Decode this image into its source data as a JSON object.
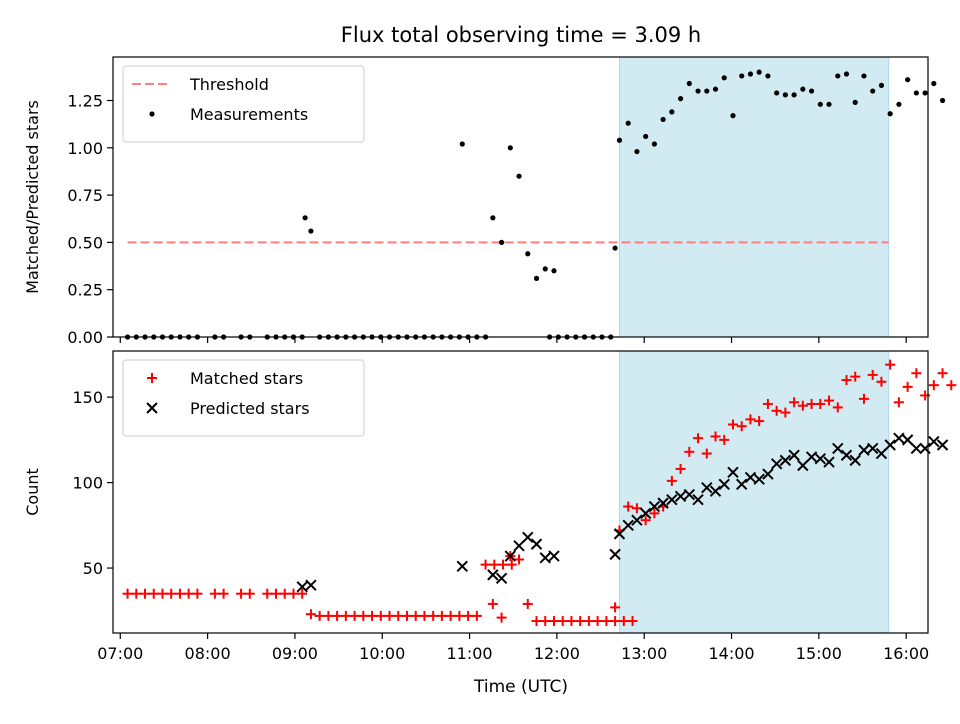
{
  "figure": {
    "title": "Flux total observing time = 3.09 h",
    "xlabel": "Time (UTC)",
    "x_ticks": [
      "07:00",
      "08:00",
      "09:00",
      "10:00",
      "11:00",
      "12:00",
      "13:00",
      "14:00",
      "15:00",
      "16:00"
    ],
    "colors": {
      "threshold": "#ff7f7f",
      "measurements": "#000000",
      "matched": "#ff0000",
      "predicted": "#000000",
      "shade": "#add8e6"
    }
  },
  "chart_data": [
    {
      "type": "scatter",
      "ylabel": "Matched/Predicted stars",
      "xlim": [
        "06:55",
        "16:15"
      ],
      "ylim": [
        0,
        1.48
      ],
      "y_ticks": [
        "0.00",
        "0.25",
        "0.50",
        "0.75",
        "1.00",
        "1.25"
      ],
      "shaded_region": [
        "12:43",
        "15:48"
      ],
      "legend_position": "upper left",
      "threshold": {
        "name": "Threshold",
        "y": 0.5,
        "x_range": [
          "07:05",
          "15:48"
        ]
      },
      "series": [
        {
          "name": "Measurements",
          "points": [
            [
              "07:05",
              0
            ],
            [
              "07:11",
              0
            ],
            [
              "07:17",
              0
            ],
            [
              "07:23",
              0
            ],
            [
              "07:29",
              0
            ],
            [
              "07:35",
              0
            ],
            [
              "07:41",
              0
            ],
            [
              "07:47",
              0
            ],
            [
              "07:53",
              0
            ],
            [
              "08:05",
              0
            ],
            [
              "08:11",
              0
            ],
            [
              "08:23",
              0
            ],
            [
              "08:29",
              0
            ],
            [
              "08:41",
              0
            ],
            [
              "08:47",
              0
            ],
            [
              "08:53",
              0
            ],
            [
              "08:59",
              0
            ],
            [
              "09:05",
              0
            ],
            [
              "09:07",
              0.63
            ],
            [
              "09:11",
              0.56
            ],
            [
              "09:17",
              0
            ],
            [
              "09:23",
              0
            ],
            [
              "09:29",
              0
            ],
            [
              "09:35",
              0
            ],
            [
              "09:41",
              0
            ],
            [
              "09:47",
              0
            ],
            [
              "09:53",
              0
            ],
            [
              "09:59",
              0
            ],
            [
              "10:05",
              0
            ],
            [
              "10:11",
              0
            ],
            [
              "10:17",
              0
            ],
            [
              "10:23",
              0
            ],
            [
              "10:29",
              0
            ],
            [
              "10:35",
              0
            ],
            [
              "10:41",
              0
            ],
            [
              "10:47",
              0
            ],
            [
              "10:53",
              0
            ],
            [
              "10:59",
              0
            ],
            [
              "11:05",
              0
            ],
            [
              "11:11",
              0
            ],
            [
              "10:55",
              1.02
            ],
            [
              "11:16",
              0.63
            ],
            [
              "11:22",
              0.5
            ],
            [
              "11:28",
              1.0
            ],
            [
              "11:34",
              0.85
            ],
            [
              "11:40",
              0.44
            ],
            [
              "11:46",
              0.31
            ],
            [
              "11:52",
              0.36
            ],
            [
              "11:58",
              0.35
            ],
            [
              "11:55",
              0
            ],
            [
              "12:01",
              0
            ],
            [
              "12:07",
              0
            ],
            [
              "12:13",
              0
            ],
            [
              "12:19",
              0
            ],
            [
              "12:25",
              0
            ],
            [
              "12:31",
              0
            ],
            [
              "12:37",
              0
            ],
            [
              "12:40",
              0.47
            ],
            [
              "12:43",
              1.04
            ],
            [
              "12:49",
              1.13
            ],
            [
              "12:55",
              0.98
            ],
            [
              "13:01",
              1.06
            ],
            [
              "13:07",
              1.02
            ],
            [
              "13:13",
              1.15
            ],
            [
              "13:19",
              1.19
            ],
            [
              "13:25",
              1.26
            ],
            [
              "13:31",
              1.34
            ],
            [
              "13:37",
              1.3
            ],
            [
              "13:43",
              1.3
            ],
            [
              "13:49",
              1.31
            ],
            [
              "13:55",
              1.37
            ],
            [
              "14:01",
              1.17
            ],
            [
              "14:07",
              1.38
            ],
            [
              "14:13",
              1.39
            ],
            [
              "14:19",
              1.4
            ],
            [
              "14:25",
              1.38
            ],
            [
              "14:31",
              1.29
            ],
            [
              "14:37",
              1.28
            ],
            [
              "14:43",
              1.28
            ],
            [
              "14:49",
              1.31
            ],
            [
              "14:55",
              1.3
            ],
            [
              "15:01",
              1.23
            ],
            [
              "15:07",
              1.23
            ],
            [
              "15:13",
              1.38
            ],
            [
              "15:19",
              1.39
            ],
            [
              "15:25",
              1.24
            ],
            [
              "15:31",
              1.38
            ],
            [
              "15:37",
              1.3
            ],
            [
              "15:43",
              1.33
            ],
            [
              "15:49",
              1.18
            ],
            [
              "15:55",
              1.23
            ],
            [
              "16:01",
              1.36
            ],
            [
              "16:07",
              1.29
            ],
            [
              "16:13",
              1.29
            ],
            [
              "16:19",
              1.34
            ],
            [
              "16:25",
              1.25
            ]
          ]
        }
      ]
    },
    {
      "type": "scatter",
      "ylabel": "Count",
      "xlim": [
        "06:55",
        "16:15"
      ],
      "ylim": [
        12,
        177
      ],
      "y_ticks": [
        "50",
        "100",
        "150"
      ],
      "shaded_region": [
        "12:43",
        "15:48"
      ],
      "legend_position": "upper left",
      "series": [
        {
          "name": "Matched stars",
          "marker": "+",
          "points": [
            [
              "07:05",
              35
            ],
            [
              "07:11",
              35
            ],
            [
              "07:17",
              35
            ],
            [
              "07:23",
              35
            ],
            [
              "07:29",
              35
            ],
            [
              "07:35",
              35
            ],
            [
              "07:41",
              35
            ],
            [
              "07:47",
              35
            ],
            [
              "07:53",
              35
            ],
            [
              "08:05",
              35
            ],
            [
              "08:11",
              35
            ],
            [
              "08:23",
              35
            ],
            [
              "08:29",
              35
            ],
            [
              "08:41",
              35
            ],
            [
              "08:47",
              35
            ],
            [
              "08:53",
              35
            ],
            [
              "08:59",
              35
            ],
            [
              "09:05",
              35
            ],
            [
              "09:11",
              23
            ],
            [
              "09:17",
              22
            ],
            [
              "09:23",
              22
            ],
            [
              "09:29",
              22
            ],
            [
              "09:35",
              22
            ],
            [
              "09:41",
              22
            ],
            [
              "09:47",
              22
            ],
            [
              "09:53",
              22
            ],
            [
              "09:59",
              22
            ],
            [
              "10:05",
              22
            ],
            [
              "10:11",
              22
            ],
            [
              "10:17",
              22
            ],
            [
              "10:23",
              22
            ],
            [
              "10:29",
              22
            ],
            [
              "10:35",
              22
            ],
            [
              "10:41",
              22
            ],
            [
              "10:47",
              22
            ],
            [
              "10:53",
              22
            ],
            [
              "10:59",
              22
            ],
            [
              "11:05",
              22
            ],
            [
              "11:11",
              52
            ],
            [
              "11:17",
              52
            ],
            [
              "11:23",
              52
            ],
            [
              "11:29",
              52
            ],
            [
              "11:16",
              29
            ],
            [
              "11:22",
              21
            ],
            [
              "11:28",
              57
            ],
            [
              "11:34",
              55
            ],
            [
              "11:40",
              29
            ],
            [
              "11:46",
              19
            ],
            [
              "11:52",
              19
            ],
            [
              "11:58",
              19
            ],
            [
              "12:04",
              19
            ],
            [
              "12:10",
              19
            ],
            [
              "12:16",
              19
            ],
            [
              "12:22",
              19
            ],
            [
              "12:28",
              19
            ],
            [
              "12:34",
              19
            ],
            [
              "12:40",
              19
            ],
            [
              "12:46",
              19
            ],
            [
              "12:52",
              19
            ],
            [
              "12:40",
              27
            ],
            [
              "12:43",
              72
            ],
            [
              "12:49",
              86
            ],
            [
              "12:55",
              85
            ],
            [
              "13:01",
              78
            ],
            [
              "13:07",
              82
            ],
            [
              "13:13",
              86
            ],
            [
              "13:19",
              101
            ],
            [
              "13:25",
              108
            ],
            [
              "13:31",
              118
            ],
            [
              "13:37",
              126
            ],
            [
              "13:43",
              117
            ],
            [
              "13:49",
              127
            ],
            [
              "13:55",
              125
            ],
            [
              "14:01",
              134
            ],
            [
              "14:07",
              133
            ],
            [
              "14:13",
              137
            ],
            [
              "14:19",
              136
            ],
            [
              "14:25",
              146
            ],
            [
              "14:31",
              142
            ],
            [
              "14:37",
              141
            ],
            [
              "14:43",
              147
            ],
            [
              "14:49",
              145
            ],
            [
              "14:55",
              146
            ],
            [
              "15:01",
              146
            ],
            [
              "15:07",
              148
            ],
            [
              "15:13",
              144
            ],
            [
              "15:19",
              160
            ],
            [
              "15:25",
              162
            ],
            [
              "15:31",
              149
            ],
            [
              "15:37",
              163
            ],
            [
              "15:43",
              159
            ],
            [
              "15:49",
              169
            ],
            [
              "15:55",
              147
            ],
            [
              "16:01",
              156
            ],
            [
              "16:07",
              164
            ],
            [
              "16:13",
              151
            ],
            [
              "16:19",
              157
            ],
            [
              "16:25",
              164
            ],
            [
              "16:31",
              157
            ]
          ]
        },
        {
          "name": "Predicted stars",
          "marker": "x",
          "points": [
            [
              "09:05",
              39
            ],
            [
              "09:11",
              40
            ],
            [
              "10:55",
              51
            ],
            [
              "11:16",
              46
            ],
            [
              "11:22",
              44
            ],
            [
              "11:28",
              57
            ],
            [
              "11:34",
              63
            ],
            [
              "11:40",
              68
            ],
            [
              "11:46",
              64
            ],
            [
              "11:52",
              56
            ],
            [
              "11:58",
              57
            ],
            [
              "12:40",
              58
            ],
            [
              "12:43",
              70
            ],
            [
              "12:49",
              75
            ],
            [
              "12:55",
              78
            ],
            [
              "13:01",
              82
            ],
            [
              "13:07",
              86
            ],
            [
              "13:13",
              88
            ],
            [
              "13:19",
              90
            ],
            [
              "13:25",
              92
            ],
            [
              "13:31",
              93
            ],
            [
              "13:37",
              90
            ],
            [
              "13:43",
              97
            ],
            [
              "13:49",
              95
            ],
            [
              "13:55",
              99
            ],
            [
              "14:01",
              106
            ],
            [
              "14:07",
              99
            ],
            [
              "14:13",
              103
            ],
            [
              "14:19",
              102
            ],
            [
              "14:25",
              105
            ],
            [
              "14:31",
              111
            ],
            [
              "14:37",
              113
            ],
            [
              "14:43",
              116
            ],
            [
              "14:49",
              110
            ],
            [
              "14:55",
              115
            ],
            [
              "15:01",
              114
            ],
            [
              "15:07",
              112
            ],
            [
              "15:13",
              120
            ],
            [
              "15:19",
              116
            ],
            [
              "15:25",
              113
            ],
            [
              "15:31",
              119
            ],
            [
              "15:37",
              120
            ],
            [
              "15:43",
              117
            ],
            [
              "15:49",
              122
            ],
            [
              "15:55",
              126
            ],
            [
              "16:01",
              125
            ],
            [
              "16:07",
              120
            ],
            [
              "16:13",
              120
            ],
            [
              "16:19",
              124
            ],
            [
              "16:25",
              122
            ]
          ]
        }
      ]
    }
  ]
}
